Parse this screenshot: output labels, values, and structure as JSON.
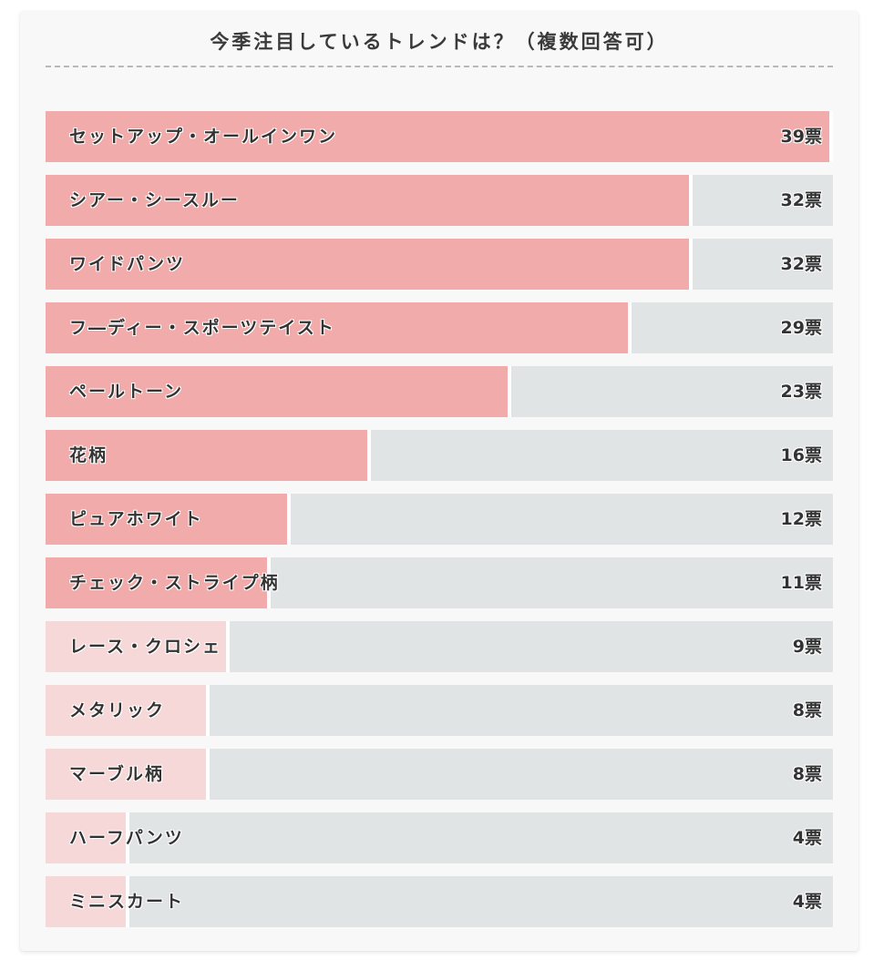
{
  "chart_data": {
    "type": "bar",
    "orientation": "horizontal",
    "title": "今季注目しているトレンドは？（複数回答可）",
    "categories": [
      "セットアップ・オールインワン",
      "シアー・シースルー",
      "ワイドパンツ",
      "フ―ディー・スポーツテイスト",
      "ペールトーン",
      "花柄",
      "ピュアホワイト",
      "チェック・ストライプ柄",
      "レース・クロシェ",
      "メタリック",
      "マーブル柄",
      "ハーフパンツ",
      "ミニスカート"
    ],
    "values": [
      39,
      32,
      32,
      29,
      23,
      16,
      12,
      11,
      9,
      8,
      8,
      4,
      4
    ],
    "value_labels": [
      "39票",
      "32票",
      "32票",
      "29票",
      "23票",
      "16票",
      "12票",
      "11票",
      "9票",
      "8票",
      "8票",
      "4票",
      "4票"
    ],
    "xlim": [
      0,
      39
    ],
    "grid": false,
    "legend": "none"
  },
  "colors": {
    "bar_high": "#f0abaa",
    "bar_low": "#f7d8d9",
    "track": "#e0e4e5",
    "card_bg": "#f8f8f8",
    "text": "#333333"
  }
}
